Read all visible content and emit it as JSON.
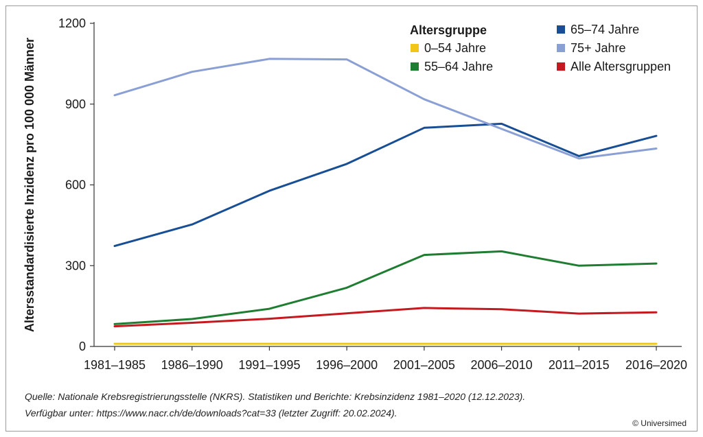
{
  "chart_data": {
    "type": "line",
    "ylabel": "Altersstandardisierte Inzidenz pro 100 000 Männer",
    "xlabel": "",
    "ylim": [
      0,
      1200
    ],
    "yticks": [
      "0",
      "300",
      "600",
      "900",
      "1200"
    ],
    "categories": [
      "1981–1985",
      "1986–1990",
      "1991–1995",
      "1996–2000",
      "2001–2005",
      "2006–2010",
      "2011–2015",
      "2016–2020"
    ],
    "legend_title": "Altersgruppe",
    "legend_position": "top-right",
    "grid": false,
    "series": [
      {
        "name": "0–54 Jahre",
        "color": "#f2c618",
        "values": [
          10,
          10,
          10,
          10,
          10,
          10,
          10,
          10
        ]
      },
      {
        "name": "55–64 Jahre",
        "color": "#1f7d32",
        "values": [
          83,
          102,
          140,
          218,
          340,
          353,
          300,
          308
        ]
      },
      {
        "name": "65–74 Jahre",
        "color": "#174e94",
        "values": [
          373,
          453,
          578,
          678,
          812,
          827,
          707,
          782
        ]
      },
      {
        "name": "75+ Jahre",
        "color": "#8a9fd4",
        "values": [
          933,
          1020,
          1068,
          1066,
          918,
          808,
          698,
          735
        ]
      },
      {
        "name": "Alle Altersgruppen",
        "color": "#c41a1f",
        "values": [
          75,
          88,
          103,
          123,
          143,
          138,
          122,
          127
        ]
      }
    ]
  },
  "footer": {
    "source_line1": "Quelle: Nationale Krebsregistrierungsstelle (NKRS). Statistiken und Berichte: Krebsinzidenz 1981–2020 (12.12.2023).",
    "source_line2": "Verfügbar unter: https://www.nacr.ch/de/downloads?cat=33 (letzter Zugriff: 20.02.2024).",
    "copyright": "© Universimed"
  }
}
